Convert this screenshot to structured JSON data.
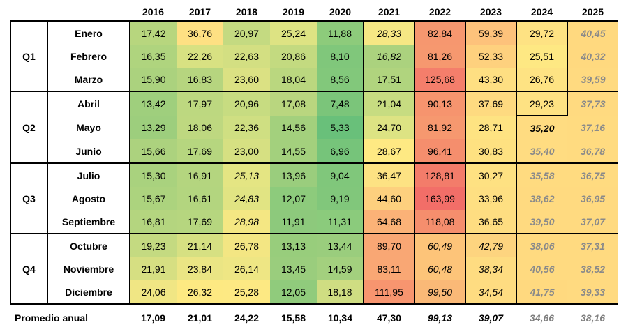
{
  "years": [
    "2016",
    "2017",
    "2018",
    "2019",
    "2020",
    "2021",
    "2022",
    "2023",
    "2024",
    "2025"
  ],
  "quarters": [
    {
      "label": "Q1",
      "months": [
        {
          "name": "Enero",
          "values": [
            "17,42",
            "36,76",
            "20,97",
            "25,24",
            "11,88",
            "28,33",
            "82,84",
            "59,39",
            "29,72",
            "40,45"
          ]
        },
        {
          "name": "Febrero",
          "values": [
            "16,35",
            "22,26",
            "22,63",
            "20,86",
            "8,10",
            "16,82",
            "81,26",
            "52,33",
            "25,51",
            "40,32"
          ]
        },
        {
          "name": "Marzo",
          "values": [
            "15,90",
            "16,83",
            "23,60",
            "18,04",
            "8,56",
            "17,51",
            "125,68",
            "43,30",
            "26,76",
            "39,59"
          ]
        }
      ]
    },
    {
      "label": "Q2",
      "months": [
        {
          "name": "Abril",
          "values": [
            "13,42",
            "17,97",
            "20,96",
            "17,08",
            "7,48",
            "21,04",
            "90,13",
            "37,69",
            "29,23",
            "37,73"
          ]
        },
        {
          "name": "Mayo",
          "values": [
            "13,29",
            "18,06",
            "22,36",
            "14,56",
            "5,33",
            "24,70",
            "81,92",
            "28,71",
            "35,20",
            "37,16"
          ]
        },
        {
          "name": "Junio",
          "values": [
            "15,66",
            "17,69",
            "23,00",
            "14,55",
            "6,96",
            "28,67",
            "96,41",
            "30,83",
            "35,40",
            "36,78"
          ]
        }
      ]
    },
    {
      "label": "Q3",
      "months": [
        {
          "name": "Julio",
          "values": [
            "15,30",
            "16,91",
            "25,13",
            "13,96",
            "9,04",
            "36,47",
            "128,81",
            "30,27",
            "35,58",
            "36,75"
          ]
        },
        {
          "name": "Agosto",
          "values": [
            "15,67",
            "16,61",
            "24,83",
            "12,07",
            "9,19",
            "44,60",
            "163,99",
            "33,96",
            "38,62",
            "36,95"
          ]
        },
        {
          "name": "Septiembre",
          "values": [
            "16,81",
            "17,69",
            "28,98",
            "11,91",
            "11,31",
            "64,68",
            "118,08",
            "36,65",
            "39,50",
            "37,07"
          ]
        }
      ]
    },
    {
      "label": "Q4",
      "months": [
        {
          "name": "Octubre",
          "values": [
            "19,23",
            "21,14",
            "26,78",
            "13,13",
            "13,44",
            "89,70",
            "60,49",
            "42,79",
            "38,06",
            "37,31"
          ]
        },
        {
          "name": "Noviembre",
          "values": [
            "21,91",
            "23,84",
            "26,14",
            "13,45",
            "14,59",
            "83,11",
            "60,48",
            "38,34",
            "40,56",
            "38,52"
          ]
        },
        {
          "name": "Diciembre",
          "values": [
            "24,06",
            "26,32",
            "25,28",
            "12,05",
            "18,18",
            "111,95",
            "99,50",
            "34,54",
            "41,75",
            "39,33"
          ]
        }
      ]
    }
  ],
  "average": {
    "label": "Promedio anual",
    "values": [
      "17,09",
      "21,01",
      "24,22",
      "15,58",
      "10,34",
      "47,30",
      "99,13",
      "39,07",
      "34,66",
      "38,16"
    ]
  }
}
